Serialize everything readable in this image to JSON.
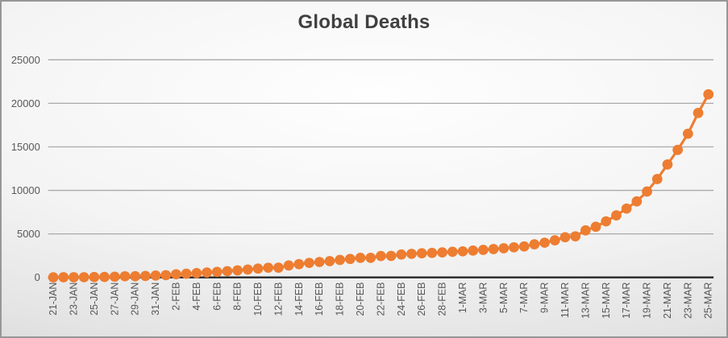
{
  "chart_data": {
    "type": "line",
    "title": "Global Deaths",
    "xlabel": "",
    "ylabel": "",
    "legend": "none",
    "grid": true,
    "ylim": [
      0,
      25000
    ],
    "yticks": [
      0,
      5000,
      10000,
      15000,
      20000,
      25000
    ],
    "ytick_labels": [
      "0",
      "5000",
      "10000",
      "15000",
      "20000",
      "25000"
    ],
    "xtick_every": 2,
    "categories": [
      "21-JAN",
      "22-JAN",
      "23-JAN",
      "24-JAN",
      "25-JAN",
      "26-JAN",
      "27-JAN",
      "28-JAN",
      "29-JAN",
      "30-JAN",
      "31-JAN",
      "1-FEB",
      "2-FEB",
      "3-FEB",
      "4-FEB",
      "5-FEB",
      "6-FEB",
      "7-FEB",
      "8-FEB",
      "9-FEB",
      "10-FEB",
      "11-FEB",
      "12-FEB",
      "13-FEB",
      "14-FEB",
      "15-FEB",
      "16-FEB",
      "17-FEB",
      "18-FEB",
      "19-FEB",
      "20-FEB",
      "21-FEB",
      "22-FEB",
      "23-FEB",
      "24-FEB",
      "25-FEB",
      "26-FEB",
      "27-FEB",
      "28-FEB",
      "29-FEB",
      "1-MAR",
      "2-MAR",
      "3-MAR",
      "4-MAR",
      "5-MAR",
      "6-MAR",
      "7-MAR",
      "8-MAR",
      "9-MAR",
      "10-MAR",
      "11-MAR",
      "12-MAR",
      "13-MAR",
      "14-MAR",
      "15-MAR",
      "16-MAR",
      "17-MAR",
      "18-MAR",
      "19-MAR",
      "20-MAR",
      "21-MAR",
      "22-MAR",
      "23-MAR",
      "24-MAR",
      "25-MAR"
    ],
    "series": [
      {
        "name": "Global Deaths",
        "marker": "circle",
        "values": [
          6,
          17,
          18,
          26,
          42,
          56,
          82,
          131,
          133,
          171,
          213,
          259,
          362,
          426,
          492,
          564,
          634,
          719,
          806,
          906,
          1013,
          1113,
          1118,
          1371,
          1523,
          1666,
          1770,
          1868,
          2007,
          2122,
          2247,
          2251,
          2458,
          2469,
          2629,
          2708,
          2770,
          2814,
          2872,
          2941,
          2996,
          3085,
          3160,
          3254,
          3348,
          3460,
          3558,
          3802,
          3988,
          4262,
          4615,
          4720,
          5404,
          5819,
          6440,
          7126,
          7905,
          8733,
          9867,
          11299,
          12973,
          14652,
          16505,
          18894,
          21031
        ]
      }
    ],
    "colors": {
      "series": "#ED7D31",
      "gridline": "#A9A9A9",
      "axis_line": "#262626",
      "title": "#404040",
      "tick_label": "#595959"
    }
  }
}
